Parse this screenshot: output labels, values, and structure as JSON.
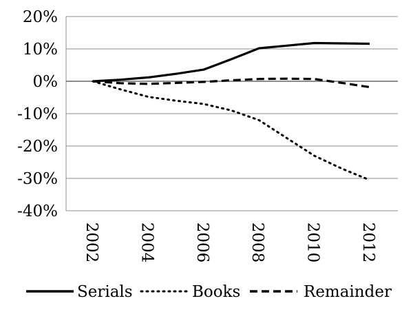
{
  "chart_data": {
    "type": "line",
    "title": "",
    "xlabel": "",
    "ylabel": "",
    "x": [
      2002,
      2003,
      2004,
      2005,
      2006,
      2007,
      2008,
      2009,
      2010,
      2011,
      2012
    ],
    "x_tick_labels": [
      "2002",
      "2004",
      "2006",
      "2008",
      "2010",
      "2012"
    ],
    "x_tick_values": [
      2002,
      2004,
      2006,
      2008,
      2010,
      2012
    ],
    "ylim": [
      -40,
      20
    ],
    "y_tick_values": [
      20,
      10,
      0,
      -10,
      -20,
      -30,
      -40
    ],
    "y_tick_labels": [
      "20%",
      "10%",
      "0%",
      "-10%",
      "-20%",
      "-30%",
      "-40%"
    ],
    "grid": "horizontal",
    "legend_position": "bottom",
    "series": [
      {
        "name": "Serials",
        "style": "solid",
        "color": "#000000",
        "values": [
          0,
          0.5,
          1.2,
          2.3,
          3.6,
          6.8,
          10.2,
          11.0,
          11.8,
          11.7,
          11.6
        ]
      },
      {
        "name": "Books",
        "style": "dotted",
        "color": "#000000",
        "values": [
          0,
          -2.5,
          -4.8,
          -6.0,
          -7.0,
          -9.0,
          -12.0,
          -17.5,
          -23.0,
          -27.0,
          -30.5
        ]
      },
      {
        "name": "Remainder",
        "style": "dashed",
        "color": "#000000",
        "values": [
          0,
          -0.6,
          -0.8,
          -0.5,
          -0.2,
          0.3,
          0.7,
          0.8,
          0.7,
          -0.5,
          -1.8
        ]
      }
    ]
  }
}
